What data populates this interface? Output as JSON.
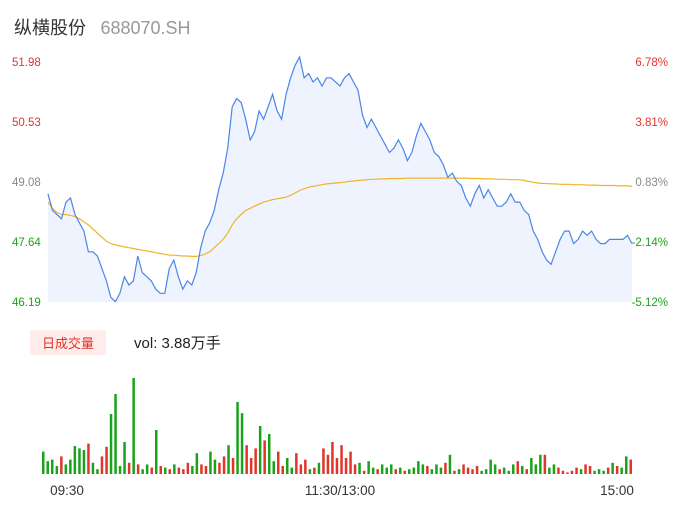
{
  "header": {
    "name": "纵横股份",
    "code": "688070.SH"
  },
  "volume_panel": {
    "tag_label": "日成交量",
    "vol_text": "vol: 3.88万手"
  },
  "colors": {
    "up": "#e0352b",
    "down": "#1aa31a",
    "neutral": "#888888",
    "price_line": "#4a86e8",
    "avg_line": "#f0b429",
    "area": "#eef3fd"
  },
  "chart_data": [
    {
      "type": "line",
      "title": "",
      "series": [],
      "price_values": [
        48.8,
        48.4,
        48.3,
        48.2,
        48.6,
        48.7,
        48.3,
        48.1,
        47.9,
        47.4,
        47.4,
        47.3,
        47.0,
        46.7,
        46.3,
        46.2,
        46.4,
        46.8,
        46.6,
        46.7,
        47.3,
        46.9,
        46.8,
        46.7,
        46.5,
        46.4,
        46.4,
        47.0,
        47.2,
        46.8,
        46.5,
        46.7,
        46.6,
        46.9,
        47.5,
        47.9,
        48.1,
        48.4,
        48.9,
        49.3,
        49.9,
        50.9,
        51.1,
        51.0,
        50.6,
        50.1,
        50.3,
        50.8,
        50.6,
        50.9,
        51.2,
        50.8,
        50.6,
        51.2,
        51.6,
        51.9,
        52.1,
        51.6,
        51.7,
        51.5,
        51.6,
        51.4,
        51.6,
        51.6,
        51.5,
        51.4,
        51.6,
        51.7,
        51.5,
        51.3,
        50.7,
        50.4,
        50.6,
        50.4,
        50.2,
        50.0,
        49.8,
        49.9,
        50.1,
        49.9,
        49.6,
        49.8,
        50.2,
        50.5,
        50.3,
        50.1,
        49.8,
        49.7,
        49.5,
        49.2,
        49.3,
        49.1,
        49.0,
        48.7,
        48.5,
        48.8,
        49.0,
        48.7,
        48.9,
        48.7,
        48.5,
        48.5,
        48.6,
        48.8,
        48.6,
        48.6,
        48.4,
        48.3,
        47.9,
        47.7,
        47.4,
        47.2,
        47.1,
        47.4,
        47.7,
        47.9,
        47.9,
        47.6,
        47.7,
        47.9,
        47.8,
        47.9,
        47.7,
        47.6,
        47.6,
        47.7,
        47.7,
        47.7,
        47.7,
        47.8,
        47.6
      ],
      "avg_values": [
        48.6,
        48.45,
        48.35,
        48.3,
        48.3,
        48.28,
        48.25,
        48.2,
        48.12,
        48.05,
        47.95,
        47.85,
        47.75,
        47.66,
        47.6,
        47.57,
        47.54,
        47.52,
        47.5,
        47.48,
        47.46,
        47.44,
        47.42,
        47.4,
        47.38,
        47.36,
        47.34,
        47.32,
        47.32,
        47.31,
        47.3,
        47.3,
        47.29,
        47.29,
        47.31,
        47.35,
        47.4,
        47.5,
        47.6,
        47.7,
        47.85,
        48.05,
        48.2,
        48.3,
        48.4,
        48.45,
        48.5,
        48.55,
        48.6,
        48.63,
        48.66,
        48.68,
        48.7,
        48.72,
        48.76,
        48.82,
        48.88,
        48.92,
        48.96,
        48.98,
        49.0,
        49.02,
        49.04,
        49.05,
        49.06,
        49.07,
        49.08,
        49.1,
        49.11,
        49.12,
        49.13,
        49.14,
        49.15,
        49.15,
        49.16,
        49.16,
        49.17,
        49.17,
        49.17,
        49.17,
        49.18,
        49.18,
        49.18,
        49.18,
        49.18,
        49.18,
        49.18,
        49.18,
        49.18,
        49.18,
        49.18,
        49.18,
        49.18,
        49.18,
        49.17,
        49.17,
        49.17,
        49.16,
        49.16,
        49.16,
        49.15,
        49.15,
        49.15,
        49.14,
        49.14,
        49.14,
        49.12,
        49.1,
        49.08,
        49.06,
        49.05,
        49.05,
        49.04,
        49.04,
        49.03,
        49.03,
        49.03,
        49.02,
        49.02,
        49.02,
        49.01,
        49.01,
        49.01,
        49.0,
        49.0,
        49.0,
        49.0,
        48.99,
        48.99,
        48.99,
        48.98
      ],
      "ylim": [
        46.19,
        51.98
      ],
      "left_ticks": [
        "51.98",
        "50.53",
        "49.08",
        "47.64",
        "46.19"
      ],
      "right_ticks": [
        "6.78%",
        "3.81%",
        "0.83%",
        "-2.14%",
        "-5.12%"
      ],
      "x_ticks": [
        "09:30",
        "11:30/13:00",
        "15:00"
      ],
      "grid": false
    },
    {
      "type": "bar",
      "title": "",
      "series": [],
      "volume_values": [
        28,
        16,
        18,
        10,
        22,
        12,
        18,
        35,
        32,
        30,
        38,
        14,
        6,
        22,
        34,
        75,
        100,
        10,
        40,
        14,
        120,
        12,
        6,
        12,
        8,
        55,
        10,
        8,
        6,
        12,
        8,
        6,
        14,
        10,
        26,
        12,
        10,
        28,
        18,
        14,
        22,
        36,
        20,
        90,
        76,
        36,
        20,
        32,
        60,
        42,
        50,
        16,
        28,
        10,
        20,
        8,
        26,
        12,
        18,
        6,
        8,
        14,
        32,
        24,
        40,
        20,
        36,
        20,
        28,
        12,
        14,
        4,
        16,
        8,
        6,
        12,
        8,
        12,
        6,
        8,
        4,
        6,
        8,
        16,
        12,
        10,
        6,
        12,
        8,
        14,
        24,
        4,
        6,
        12,
        8,
        6,
        10,
        4,
        6,
        18,
        12,
        6,
        8,
        4,
        12,
        16,
        10,
        6,
        20,
        12,
        24,
        24,
        8,
        12,
        8,
        4,
        2,
        4,
        8,
        6,
        12,
        10,
        4,
        6,
        4,
        8,
        14,
        10,
        8,
        22,
        18
      ],
      "volume_colors": [
        "d",
        "d",
        "d",
        "d",
        "u",
        "d",
        "d",
        "d",
        "d",
        "d",
        "u",
        "d",
        "d",
        "u",
        "u",
        "d",
        "d",
        "d",
        "d",
        "u",
        "d",
        "u",
        "d",
        "d",
        "u",
        "d",
        "u",
        "d",
        "u",
        "d",
        "u",
        "u",
        "u",
        "d",
        "d",
        "u",
        "u",
        "d",
        "d",
        "u",
        "u",
        "d",
        "u",
        "d",
        "d",
        "u",
        "u",
        "u",
        "d",
        "u",
        "d",
        "d",
        "u",
        "u",
        "d",
        "d",
        "u",
        "u",
        "u",
        "d",
        "u",
        "d",
        "u",
        "u",
        "u",
        "u",
        "u",
        "u",
        "u",
        "u",
        "d",
        "u",
        "d",
        "d",
        "u",
        "d",
        "d",
        "d",
        "u",
        "d",
        "u",
        "d",
        "d",
        "d",
        "d",
        "u",
        "d",
        "d",
        "d",
        "u",
        "d",
        "u",
        "d",
        "u",
        "u",
        "u",
        "u",
        "d",
        "d",
        "d",
        "d",
        "u",
        "d",
        "d",
        "d",
        "u",
        "d",
        "u",
        "d",
        "d",
        "d",
        "u",
        "d",
        "d",
        "u",
        "u",
        "u",
        "u",
        "u",
        "d",
        "u",
        "u",
        "d",
        "d",
        "d",
        "u",
        "d",
        "u",
        "d",
        "d",
        "u"
      ]
    }
  ]
}
